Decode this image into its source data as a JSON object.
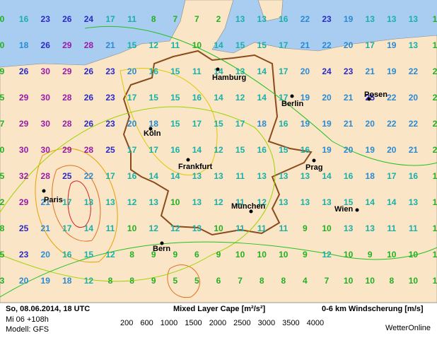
{
  "grid": {
    "rows": [
      [
        "0",
        "16",
        "23",
        "26",
        "24",
        "17",
        "11",
        "8",
        "7",
        "7",
        "2",
        "13",
        "13",
        "16",
        "22",
        "23",
        "19",
        "13",
        "13",
        "13",
        "1"
      ],
      [
        "0",
        "18",
        "26",
        "29",
        "28",
        "21",
        "15",
        "12",
        "11",
        "10",
        "14",
        "15",
        "15",
        "17",
        "21",
        "22",
        "20",
        "17",
        "19",
        "13",
        "1"
      ],
      [
        "9",
        "26",
        "30",
        "29",
        "26",
        "23",
        "20",
        "16",
        "15",
        "11",
        "14",
        "13",
        "14",
        "17",
        "20",
        "24",
        "23",
        "21",
        "19",
        "22",
        "2"
      ],
      [
        "5",
        "29",
        "30",
        "28",
        "26",
        "23",
        "17",
        "15",
        "15",
        "16",
        "14",
        "12",
        "14",
        "17",
        "19",
        "20",
        "21",
        "25",
        "22",
        "20",
        "2"
      ],
      [
        "7",
        "29",
        "30",
        "28",
        "26",
        "23",
        "20",
        "18",
        "15",
        "17",
        "15",
        "17",
        "18",
        "16",
        "19",
        "19",
        "21",
        "20",
        "22",
        "22",
        "2"
      ],
      [
        "0",
        "30",
        "30",
        "29",
        "28",
        "25",
        "17",
        "17",
        "16",
        "14",
        "12",
        "15",
        "16",
        "15",
        "16",
        "19",
        "20",
        "19",
        "20",
        "21",
        "2"
      ],
      [
        "5",
        "32",
        "28",
        "25",
        "22",
        "17",
        "16",
        "14",
        "14",
        "13",
        "13",
        "11",
        "13",
        "13",
        "13",
        "14",
        "16",
        "18",
        "17",
        "16",
        "1"
      ],
      [
        "2",
        "29",
        "21",
        "17",
        "13",
        "13",
        "12",
        "13",
        "10",
        "13",
        "12",
        "11",
        "12",
        "13",
        "13",
        "13",
        "15",
        "14",
        "14",
        "13",
        "1"
      ],
      [
        "8",
        "25",
        "21",
        "17",
        "14",
        "11",
        "10",
        "12",
        "12",
        "13",
        "10",
        "11",
        "11",
        "11",
        "9",
        "10",
        "13",
        "13",
        "11",
        "11",
        "1"
      ],
      [
        "5",
        "23",
        "20",
        "16",
        "15",
        "12",
        "8",
        "9",
        "9",
        "6",
        "9",
        "10",
        "10",
        "10",
        "9",
        "12",
        "10",
        "9",
        "10",
        "10",
        "1"
      ],
      [
        "3",
        "20",
        "19",
        "18",
        "12",
        "8",
        "8",
        "9",
        "5",
        "5",
        "6",
        "7",
        "8",
        "8",
        "4",
        "7",
        "10",
        "10",
        "8",
        "10",
        "1"
      ]
    ]
  },
  "cities": [
    {
      "name": "Hamburg"
    },
    {
      "name": "Berlin"
    },
    {
      "name": "Posen"
    },
    {
      "name": "Köln"
    },
    {
      "name": "Frankfurt"
    },
    {
      "name": "Prag"
    },
    {
      "name": "Paris"
    },
    {
      "name": "München"
    },
    {
      "name": "Wien"
    },
    {
      "name": "Bern"
    }
  ],
  "footer": {
    "date": "So, 08.06.2014, 18 UTC",
    "run": "Mi 06 +108h",
    "model": "Modell: GFS",
    "cape_title": "Mixed Layer Cape [m²/s²]",
    "shear_title": "0-6 km Windscherung [m/s]",
    "brand": "WetterOnline"
  },
  "legend": [
    {
      "label": "200",
      "color": "#22c022"
    },
    {
      "label": "600",
      "color": "#9ad400"
    },
    {
      "label": "1000",
      "color": "#e0c800"
    },
    {
      "label": "1500",
      "color": "#e8a000"
    },
    {
      "label": "2000",
      "color": "#e07020"
    },
    {
      "label": "2500",
      "color": "#d02020"
    },
    {
      "label": "3000",
      "color": "#c01060"
    },
    {
      "label": "3500",
      "color": "#a020a0"
    },
    {
      "label": "4000",
      "color": "#8000c0"
    }
  ]
}
